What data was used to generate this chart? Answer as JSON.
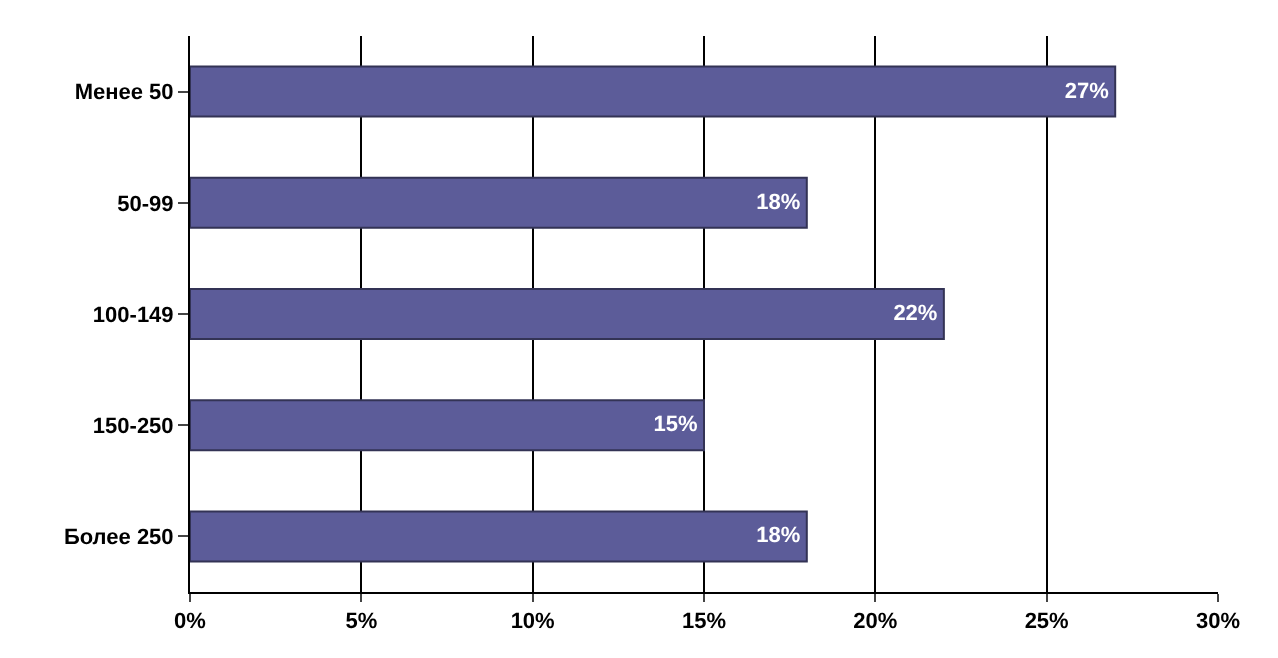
{
  "chart_data": {
    "type": "bar",
    "orientation": "horizontal",
    "categories": [
      "Менее 50",
      "50-99",
      "100-149",
      "150-250",
      "Более 250"
    ],
    "values": [
      27,
      18,
      22,
      15,
      18
    ],
    "color": "#5c5c99",
    "xlim": [
      0,
      30
    ],
    "xticks": [
      {
        "value": 0,
        "label": "0%"
      },
      {
        "value": 5,
        "label": "5%"
      },
      {
        "value": 10,
        "label": "10%"
      },
      {
        "value": 15,
        "label": "15%"
      },
      {
        "value": 20,
        "label": "20%"
      },
      {
        "value": 25,
        "label": "25%"
      },
      {
        "value": 30,
        "label": "30%"
      }
    ],
    "value_labels": [
      "27%",
      "18%",
      "22%",
      "15%",
      "18%"
    ],
    "grid": "x"
  }
}
